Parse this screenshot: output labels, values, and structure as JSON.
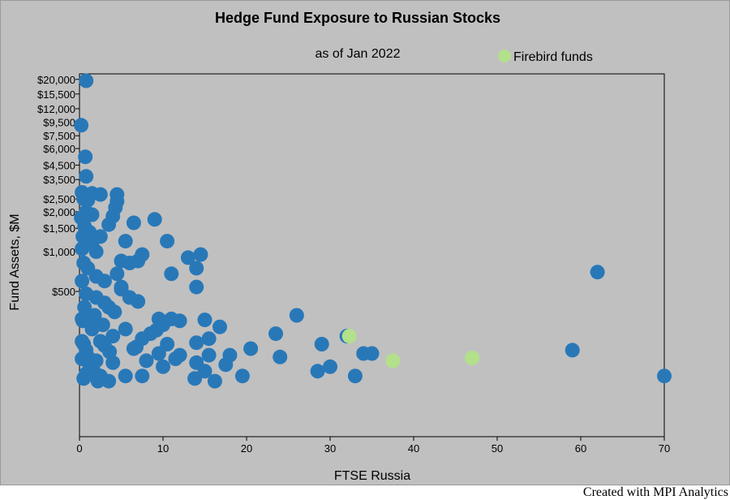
{
  "colors": {
    "background": "#c0c0c0",
    "series_main": "#2878b8",
    "series_firebird": "#b3e08a"
  },
  "credit": "Created with MPI Analytics",
  "chart_data": {
    "type": "scatter",
    "title": "Hedge Fund Exposure to Russian Stocks",
    "subtitle": "as of Jan 2022",
    "xlabel": "FTSE Russia",
    "ylabel": "Fund Assets, $M",
    "xlim": [
      0,
      70
    ],
    "xticks": [
      0,
      10,
      20,
      30,
      40,
      50,
      60,
      70
    ],
    "ylim": [
      40,
      22000
    ],
    "yscale": "log",
    "yticks": [
      500,
      1000,
      1500,
      2000,
      2500,
      3500,
      4500,
      6000,
      7500,
      9500,
      12000,
      15500,
      20000
    ],
    "ytick_labels": [
      "$500",
      "$1,000",
      "$1,500",
      "$2,000",
      "$2,500",
      "$3,500",
      "$4,500",
      "$6,000",
      "$7,500",
      "$9,500",
      "$12,000",
      "$15,500",
      "$20,000"
    ],
    "legend": {
      "position": "top-right"
    },
    "series": [
      {
        "color": "#2878b8",
        "x": [
          0.8,
          0.2,
          0.7,
          0.8,
          0.3,
          1.5,
          2.5,
          4.5,
          0.5,
          1.0,
          4.5,
          4.3,
          0.8,
          1.5,
          4.0,
          0.2,
          6.5,
          9.0,
          0.6,
          3.5,
          1.2,
          0.4,
          2.5,
          5.5,
          10.5,
          1.5,
          0.3,
          2.0,
          7.5,
          14.5,
          13.0,
          5.0,
          7.0,
          0.5,
          6.0,
          14.0,
          1.0,
          11.0,
          4.5,
          2.0,
          0.3,
          3.0,
          5.0,
          14.0,
          0.8,
          2.0,
          6.0,
          7.0,
          3.5,
          1.0,
          26.0,
          0.3,
          9.5,
          11.0,
          12.0,
          15.0,
          10.0,
          5.5,
          16.8,
          1.5,
          23.5,
          32.0,
          4.0,
          15.5,
          7.5,
          0.3,
          2.5,
          0.5,
          10.5,
          3.0,
          14.0,
          29.0,
          6.5,
          20.5,
          0.8,
          34.0,
          35.0,
          9.5,
          18.0,
          12.0,
          15.5,
          1.0,
          24.0,
          0.3,
          11.5,
          2.0,
          8.0,
          4.0,
          14.0,
          17.5,
          30.0,
          10.0,
          28.5,
          15.0,
          0.8,
          5.5,
          2.5,
          7.5,
          19.5,
          33.0,
          13.8,
          16.2,
          0.5,
          2.2,
          3.5,
          59.0,
          62.0,
          70.0,
          1.8,
          0.6,
          3.0,
          5.0,
          8.5,
          1.2,
          2.8,
          4.2,
          6.8,
          9.2,
          0.4,
          1.6,
          3.6
        ],
        "y": [
          19500,
          9000,
          5200,
          3700,
          2800,
          2750,
          2700,
          2700,
          2500,
          2450,
          2400,
          2150,
          2000,
          1900,
          1850,
          1800,
          1650,
          1750,
          1550,
          1600,
          1400,
          1300,
          1300,
          1200,
          1200,
          1150,
          1050,
          1000,
          950,
          950,
          900,
          850,
          850,
          820,
          820,
          750,
          750,
          680,
          680,
          650,
          600,
          600,
          540,
          540,
          480,
          450,
          450,
          420,
          380,
          330,
          330,
          310,
          310,
          310,
          300,
          305,
          280,
          260,
          270,
          260,
          240,
          230,
          230,
          220,
          220,
          210,
          210,
          200,
          200,
          195,
          205,
          200,
          185,
          185,
          180,
          170,
          170,
          170,
          165,
          165,
          165,
          160,
          160,
          155,
          155,
          150,
          150,
          145,
          145,
          140,
          135,
          135,
          125,
          125,
          120,
          115,
          115,
          115,
          115,
          115,
          110,
          105,
          110,
          105,
          105,
          180,
          700,
          115,
          330,
          380,
          410,
          520,
          240,
          140,
          280,
          350,
          190,
          255,
          300,
          130,
          175
        ],
        "firebird": false
      },
      {
        "name": "Firebird funds",
        "color": "#b3e08a",
        "x": [
          32.3,
          37.5,
          47.0
        ],
        "y": [
          230,
          150,
          157
        ],
        "firebird": true
      }
    ]
  }
}
